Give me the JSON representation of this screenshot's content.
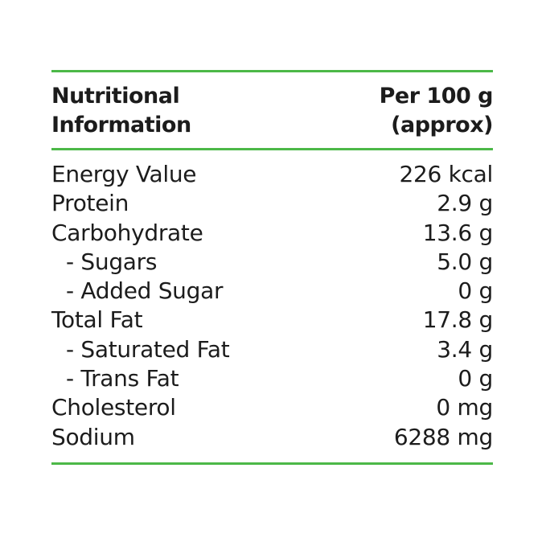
{
  "accent_color": "#4cb848",
  "header": {
    "left": [
      "Nutritional",
      "Information"
    ],
    "right": [
      "Per 100 g",
      "(approx)"
    ]
  },
  "rows": [
    {
      "label": "Energy Value",
      "value": "226 kcal",
      "sub": false
    },
    {
      "label": "Protein",
      "value": "2.9 g",
      "sub": false
    },
    {
      "label": "Carbohydrate",
      "value": "13.6 g",
      "sub": false
    },
    {
      "label": "- Sugars",
      "value": "5.0 g",
      "sub": true
    },
    {
      "label": "- Added Sugar",
      "value": "0 g",
      "sub": true
    },
    {
      "label": "Total Fat",
      "value": "17.8 g",
      "sub": false
    },
    {
      "label": "- Saturated Fat",
      "value": "3.4 g",
      "sub": true
    },
    {
      "label": "- Trans Fat",
      "value": "0 g",
      "sub": true
    },
    {
      "label": "Cholesterol",
      "value": "0 mg",
      "sub": false
    },
    {
      "label": "Sodium",
      "value": "6288 mg",
      "sub": false
    }
  ]
}
